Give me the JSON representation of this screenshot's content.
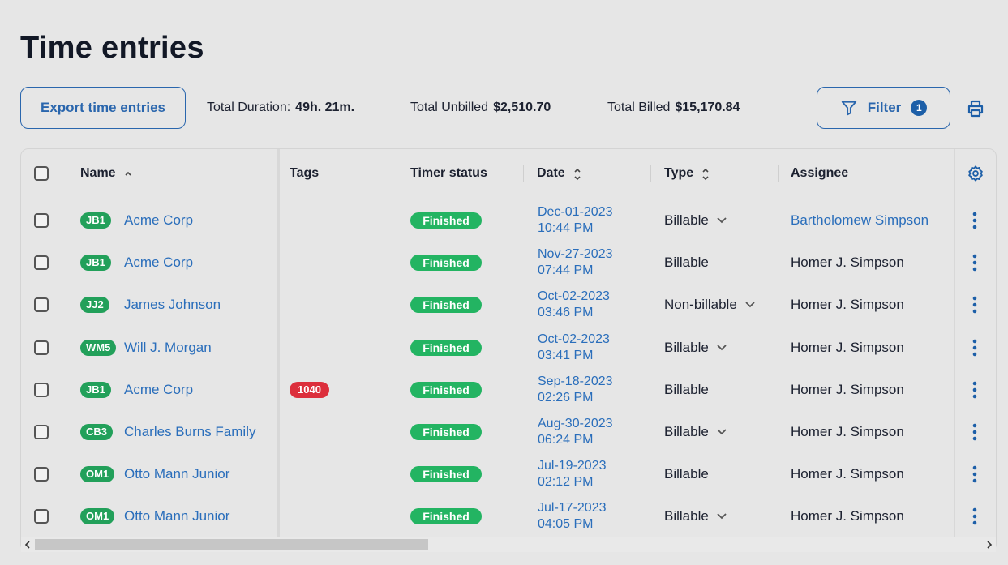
{
  "header": {
    "title": "Time entries"
  },
  "toolbar": {
    "export_button": "Export time entries",
    "total_duration": {
      "label": "Total Duration:",
      "value": "49h. 21m."
    },
    "total_unbilled": {
      "label": "Total Unbilled",
      "value": "$2,510.70"
    },
    "total_billed": {
      "label": "Total Billed",
      "value": "$15,170.84"
    },
    "filter_button": {
      "label": "Filter",
      "count": 1
    }
  },
  "table": {
    "columns": [
      "Name",
      "Tags",
      "Timer status",
      "Date",
      "Type",
      "Assignee"
    ],
    "rows": [
      {
        "badge": "JB1",
        "name": "Acme Corp",
        "tags": [],
        "status": "Finished",
        "date": "Dec-01-2023",
        "time": "10:44 PM",
        "type": "Billable",
        "type_dropdown": true,
        "assignee": "Bartholomew Simpson",
        "assignee_link": true
      },
      {
        "badge": "JB1",
        "name": "Acme Corp",
        "tags": [],
        "status": "Finished",
        "date": "Nov-27-2023",
        "time": "07:44 PM",
        "type": "Billable",
        "type_dropdown": false,
        "assignee": "Homer J. Simpson",
        "assignee_link": false
      },
      {
        "badge": "JJ2",
        "name": "James Johnson",
        "tags": [],
        "status": "Finished",
        "date": "Oct-02-2023",
        "time": "03:46 PM",
        "type": "Non-billable",
        "type_dropdown": true,
        "assignee": "Homer J. Simpson",
        "assignee_link": false
      },
      {
        "badge": "WM5",
        "name": "Will J. Morgan",
        "tags": [],
        "status": "Finished",
        "date": "Oct-02-2023",
        "time": "03:41 PM",
        "type": "Billable",
        "type_dropdown": true,
        "assignee": "Homer J. Simpson",
        "assignee_link": false
      },
      {
        "badge": "JB1",
        "name": "Acme Corp",
        "tags": [
          "1040"
        ],
        "status": "Finished",
        "date": "Sep-18-2023",
        "time": "02:26 PM",
        "type": "Billable",
        "type_dropdown": false,
        "assignee": "Homer J. Simpson",
        "assignee_link": false
      },
      {
        "badge": "CB3",
        "name": "Charles Burns Family",
        "tags": [],
        "status": "Finished",
        "date": "Aug-30-2023",
        "time": "06:24 PM",
        "type": "Billable",
        "type_dropdown": true,
        "assignee": "Homer J. Simpson",
        "assignee_link": false
      },
      {
        "badge": "OM1",
        "name": "Otto Mann Junior",
        "tags": [],
        "status": "Finished",
        "date": "Jul-19-2023",
        "time": "02:12 PM",
        "type": "Billable",
        "type_dropdown": false,
        "assignee": "Homer J. Simpson",
        "assignee_link": false
      },
      {
        "badge": "OM1",
        "name": "Otto Mann Junior",
        "tags": [],
        "status": "Finished",
        "date": "Jul-17-2023",
        "time": "04:05 PM",
        "type": "Billable",
        "type_dropdown": true,
        "assignee": "Homer J. Simpson",
        "assignee_link": false
      }
    ]
  }
}
